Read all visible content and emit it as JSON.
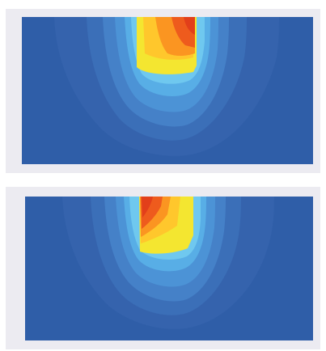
{
  "figure": {
    "panels": [
      {
        "kind": "contour-map",
        "colormap": [
          "#2f5ea8",
          "#3f7cc4",
          "#4c9ad8",
          "#5cbbea",
          "#7fd3f0",
          "#f4e630",
          "#ffc72c",
          "#fb9521",
          "#ee5b1d",
          "#e23f1a"
        ]
      },
      {
        "kind": "contour-map",
        "colormap": [
          "#2f5ea8",
          "#3f7cc4",
          "#4c9ad8",
          "#5cbbea",
          "#7fd3f0",
          "#f4e630",
          "#ffc72c",
          "#fb9521",
          "#ee5b1d",
          "#e23f1a"
        ]
      }
    ]
  }
}
